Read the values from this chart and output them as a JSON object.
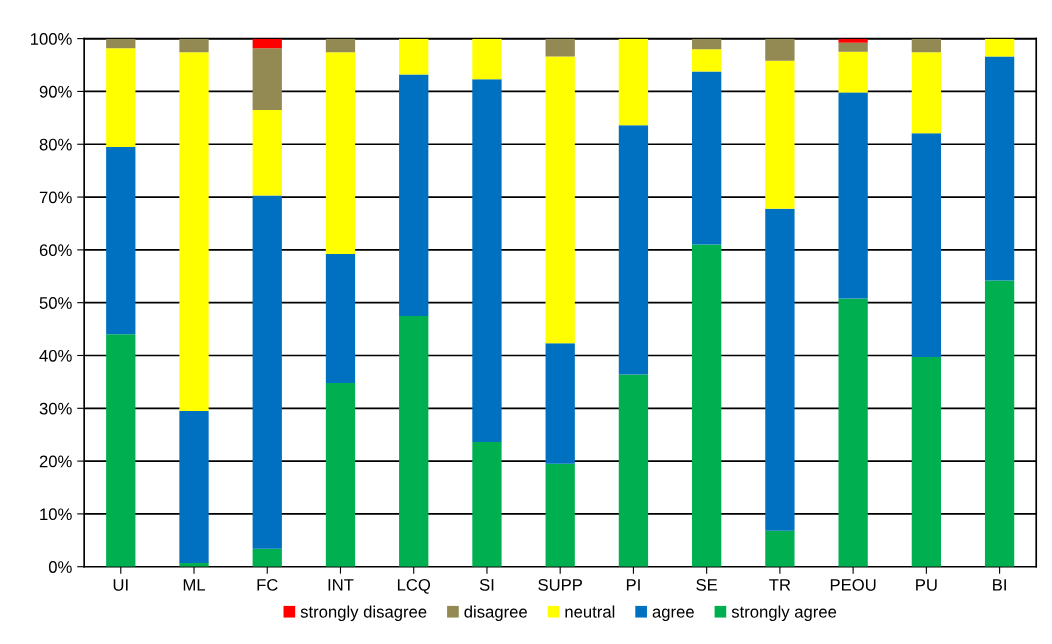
{
  "chart_data": {
    "type": "bar",
    "stacked": true,
    "categories": [
      "UI",
      "ML",
      "FC",
      "INT",
      "LCQ",
      "SI",
      "SUPP",
      "PI",
      "SE",
      "TR",
      "PEOU",
      "PU",
      "BI"
    ],
    "series": [
      {
        "name": "strongly agree",
        "color": "#00b050",
        "values": [
          44.0,
          0.7,
          3.4,
          34.8,
          47.5,
          23.6,
          19.5,
          36.4,
          61.0,
          6.8,
          50.8,
          39.7,
          54.2
        ]
      },
      {
        "name": "agree",
        "color": "#0070c0",
        "values": [
          35.5,
          28.8,
          66.9,
          24.4,
          45.7,
          68.7,
          22.8,
          47.2,
          32.8,
          61.0,
          39.0,
          42.4,
          42.4
        ]
      },
      {
        "name": "neutral",
        "color": "#ffff00",
        "values": [
          18.7,
          67.9,
          16.2,
          38.2,
          6.8,
          7.7,
          54.3,
          16.4,
          4.2,
          28.0,
          7.7,
          15.3,
          3.4
        ]
      },
      {
        "name": "disagree",
        "color": "#938953",
        "values": [
          1.8,
          2.6,
          11.7,
          2.6,
          0,
          0,
          3.4,
          0,
          2.0,
          4.2,
          1.7,
          2.6,
          0
        ]
      },
      {
        "name": "strongly disagree",
        "color": "#ff0000",
        "values": [
          0,
          0,
          1.8,
          0,
          0,
          0,
          0,
          0,
          0,
          0,
          0.8,
          0,
          0
        ]
      }
    ],
    "ylim": [
      0,
      100
    ],
    "yticks": [
      {
        "value": 0,
        "label": "0%"
      },
      {
        "value": 10,
        "label": "10%"
      },
      {
        "value": 20,
        "label": "20%"
      },
      {
        "value": 30,
        "label": "30%"
      },
      {
        "value": 40,
        "label": "40%"
      },
      {
        "value": 50,
        "label": "50%"
      },
      {
        "value": 60,
        "label": "60%"
      },
      {
        "value": 70,
        "label": "70%"
      },
      {
        "value": 80,
        "label": "80%"
      },
      {
        "value": 90,
        "label": "90%"
      },
      {
        "value": 100,
        "label": "100%"
      }
    ],
    "grid": "y",
    "legend": "bottom"
  }
}
